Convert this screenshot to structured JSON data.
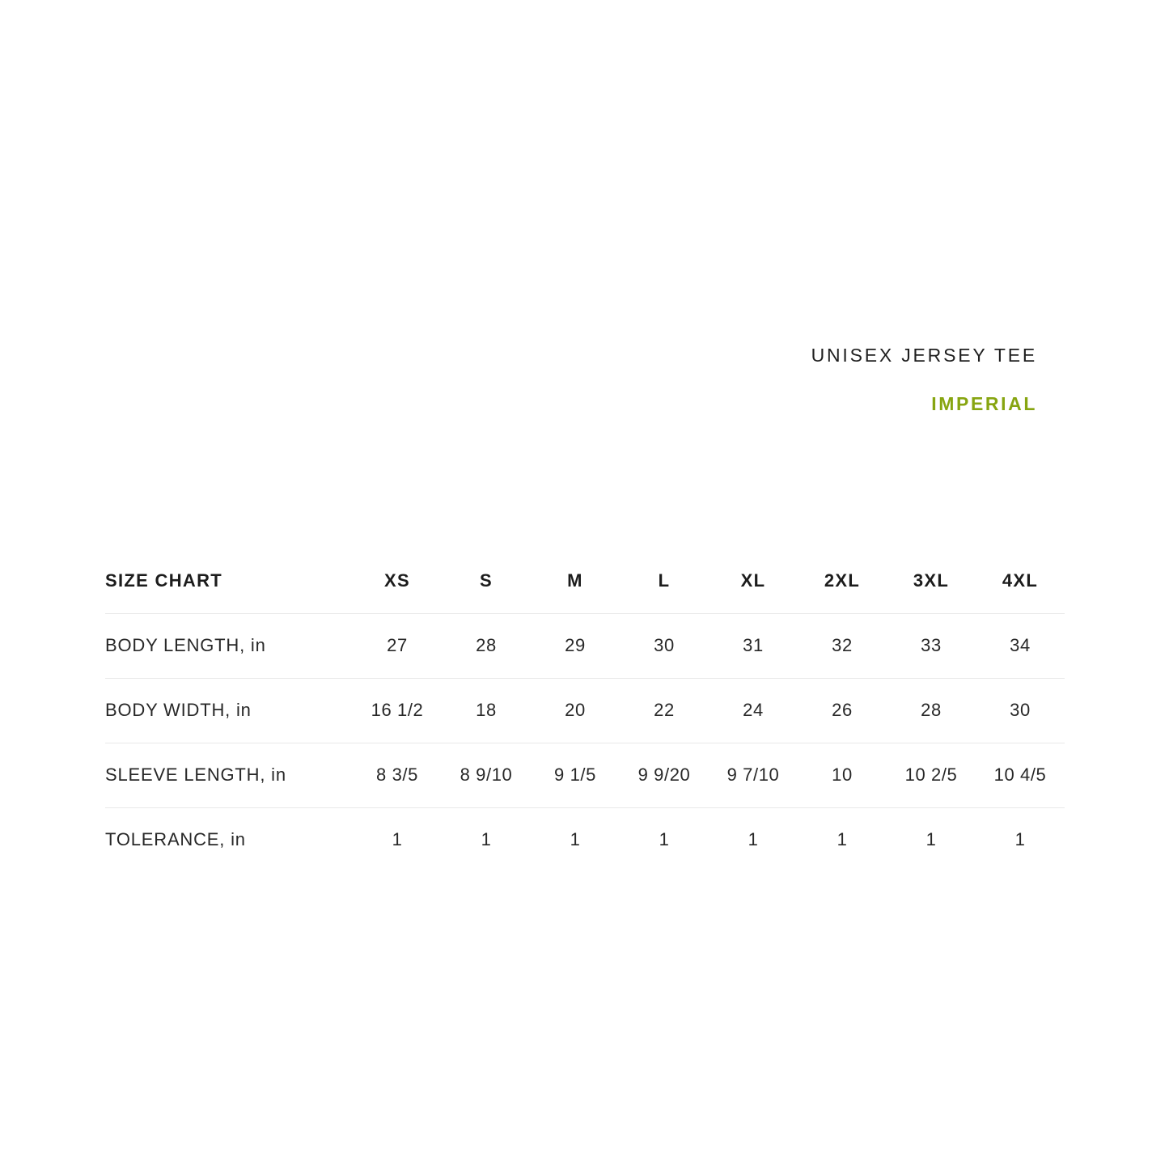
{
  "colors": {
    "accent_green": "#87a511",
    "text_dark": "#1f1f1f",
    "divider": "#e9e9e9"
  },
  "chart_data": {
    "type": "table",
    "title": "UNISEX JERSEY TEE",
    "subtitle": "IMPERIAL",
    "corner_label": "SIZE CHART",
    "columns": [
      "XS",
      "S",
      "M",
      "L",
      "XL",
      "2XL",
      "3XL",
      "4XL"
    ],
    "rows": [
      {
        "label": "BODY LENGTH, in",
        "values": [
          "27",
          "28",
          "29",
          "30",
          "31",
          "32",
          "33",
          "34"
        ]
      },
      {
        "label": "BODY WIDTH, in",
        "values": [
          "16 1/2",
          "18",
          "20",
          "22",
          "24",
          "26",
          "28",
          "30"
        ]
      },
      {
        "label": "SLEEVE LENGTH, in",
        "values": [
          "8 3/5",
          "8 9/10",
          "9 1/5",
          "9 9/20",
          "9 7/10",
          "10",
          "10 2/5",
          "10 4/5"
        ]
      },
      {
        "label": "TOLERANCE, in",
        "values": [
          "1",
          "1",
          "1",
          "1",
          "1",
          "1",
          "1",
          "1"
        ]
      }
    ],
    "layout": {
      "grid": "horizontal-dividers-only",
      "title_position": "top-right"
    }
  }
}
